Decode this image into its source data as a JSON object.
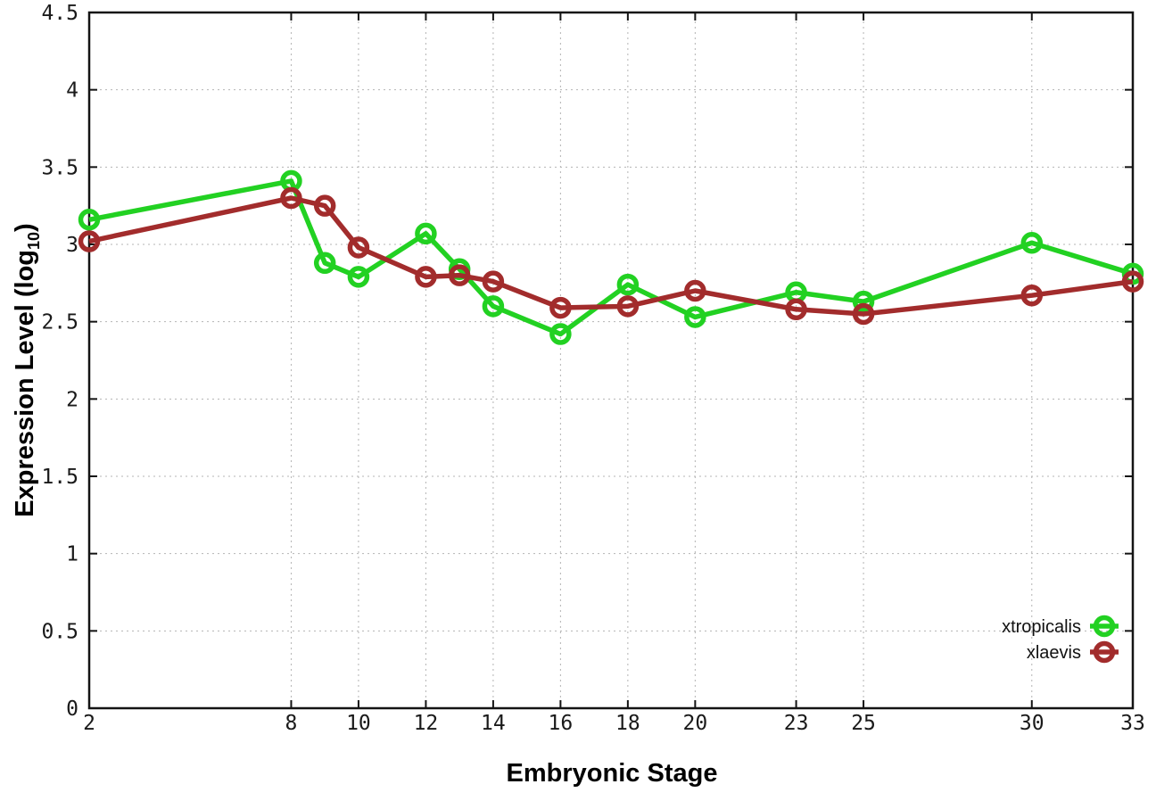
{
  "chart_data": {
    "type": "line",
    "xlabel": "Embryonic Stage",
    "ylabel": "Expression Level (log10)",
    "ylabel_parts": {
      "prefix": "Expression Level (log",
      "subscript": "10",
      "suffix": ")"
    },
    "x": [
      2,
      8,
      9,
      10,
      12,
      13,
      14,
      16,
      18,
      20,
      23,
      25,
      30,
      33
    ],
    "series": [
      {
        "name": "xtropicalis",
        "color": "#22d122",
        "values": [
          3.16,
          3.41,
          2.88,
          2.79,
          3.07,
          2.84,
          2.6,
          2.42,
          2.74,
          2.53,
          2.69,
          2.63,
          3.01,
          2.81
        ]
      },
      {
        "name": "xlaevis",
        "color": "#a22c2c",
        "values": [
          3.02,
          3.3,
          3.25,
          2.98,
          2.79,
          2.8,
          2.76,
          2.59,
          2.6,
          2.7,
          2.58,
          2.55,
          2.67,
          2.76
        ]
      }
    ],
    "x_ticks": [
      2,
      8,
      10,
      12,
      14,
      16,
      18,
      20,
      23,
      25,
      30,
      33
    ],
    "y_ticks": [
      0,
      0.5,
      1,
      1.5,
      2,
      2.5,
      3,
      3.5,
      4,
      4.5
    ],
    "xlim": [
      2,
      33
    ],
    "ylim": [
      0,
      4.5
    ],
    "grid": true,
    "marker": "open-circle",
    "legend_position": "bottom-right"
  }
}
